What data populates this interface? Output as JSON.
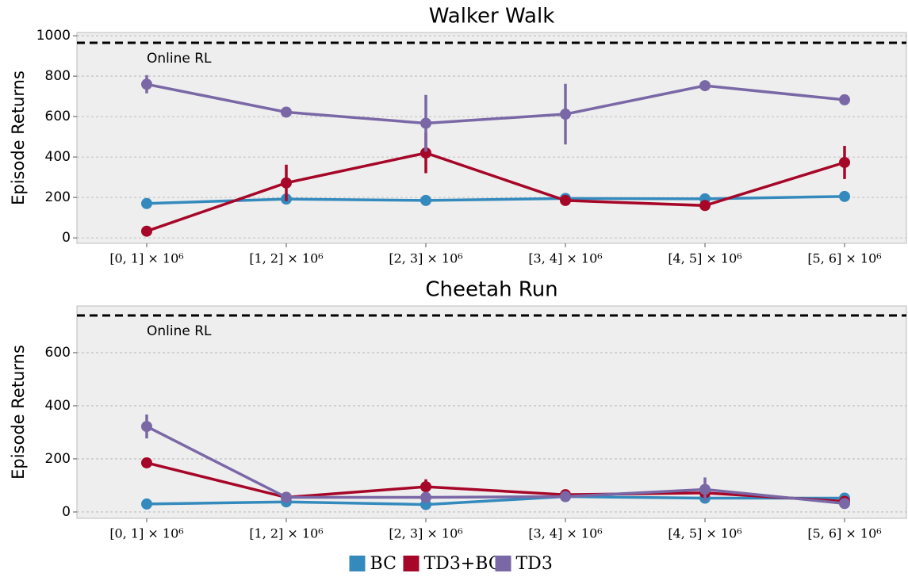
{
  "chart_data": [
    {
      "type": "line",
      "title": "Walker Walk",
      "ylabel": "Episode Returns",
      "categories": [
        "[0, 1] × 10⁶",
        "[1, 2] × 10⁶",
        "[2, 3] × 10⁶",
        "[3, 4] × 10⁶",
        "[4, 5] × 10⁶",
        "[5, 6] × 10⁶"
      ],
      "ylim": [
        -27,
        1016
      ],
      "yticks": [
        0,
        200,
        400,
        600,
        800,
        1000
      ],
      "grid": true,
      "reference": {
        "label": "Online RL",
        "value": 965
      },
      "series": [
        {
          "name": "BC",
          "color": "#348abd",
          "values": [
            170,
            192,
            185,
            195,
            193,
            205
          ],
          "errors": [
            8,
            10,
            8,
            8,
            8,
            8
          ]
        },
        {
          "name": "TD3+BC",
          "color": "#a60628",
          "values": [
            33,
            272,
            420,
            185,
            160,
            373
          ],
          "errors": [
            8,
            90,
            100,
            12,
            18,
            82
          ]
        },
        {
          "name": "TD3",
          "color": "#7a68a6",
          "values": [
            760,
            622,
            567,
            612,
            753,
            683
          ],
          "errors": [
            45,
            22,
            140,
            150,
            10,
            22
          ]
        }
      ]
    },
    {
      "type": "line",
      "title": "Cheetah Run",
      "ylabel": "Episode Returns",
      "categories": [
        "[0, 1] × 10⁶",
        "[1, 2] × 10⁶",
        "[2, 3] × 10⁶",
        "[3, 4] × 10⁶",
        "[4, 5] × 10⁶",
        "[5, 6] × 10⁶"
      ],
      "ylim": [
        -24,
        776
      ],
      "yticks": [
        0,
        200,
        400,
        600
      ],
      "grid": true,
      "reference": {
        "label": "Online RL",
        "value": 740
      },
      "series": [
        {
          "name": "BC",
          "color": "#348abd",
          "values": [
            30,
            38,
            28,
            58,
            52,
            52
          ],
          "errors": [
            5,
            8,
            5,
            8,
            8,
            6
          ]
        },
        {
          "name": "TD3+BC",
          "color": "#a60628",
          "values": [
            185,
            55,
            95,
            65,
            72,
            40
          ],
          "errors": [
            8,
            12,
            28,
            8,
            15,
            10
          ]
        },
        {
          "name": "TD3",
          "color": "#7a68a6",
          "values": [
            322,
            55,
            55,
            58,
            85,
            32
          ],
          "errors": [
            45,
            10,
            10,
            8,
            45,
            8
          ]
        }
      ]
    }
  ]
}
